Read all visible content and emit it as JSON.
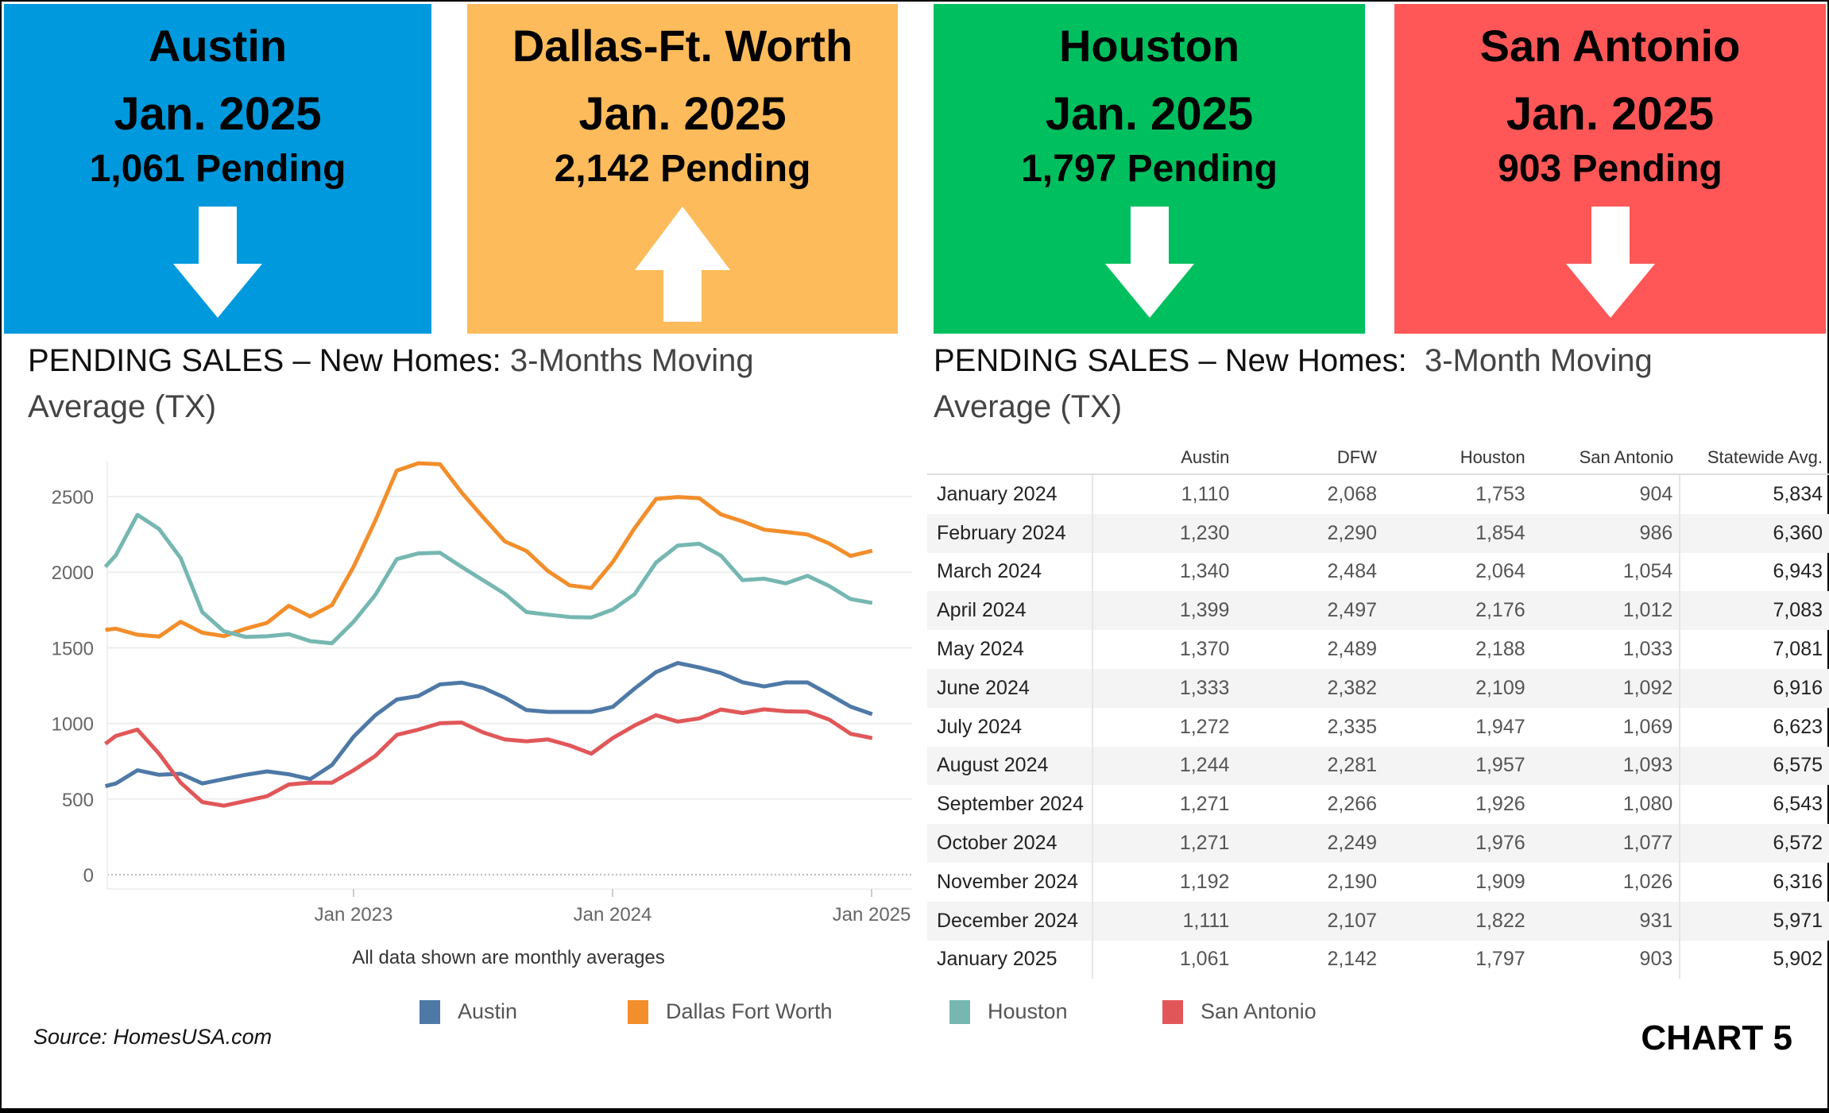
{
  "boxes": [
    {
      "city": "Austin",
      "date": "Jan. 2025",
      "pending": "1,061 Pending",
      "direction": "down",
      "color": "#0099dd"
    },
    {
      "city": "Dallas-Ft. Worth",
      "date": "Jan. 2025",
      "pending": "2,142 Pending",
      "direction": "up",
      "color": "#fdbb5b"
    },
    {
      "city": "Houston",
      "date": "Jan. 2025",
      "pending": "1,797 Pending",
      "direction": "down",
      "color": "#00bf5f"
    },
    {
      "city": "San Antonio",
      "date": "Jan. 2025",
      "pending": "903 Pending",
      "direction": "down",
      "color": "#ff5757"
    }
  ],
  "left_heading": {
    "main": "PENDING SALES – New Homes:",
    "muted": "3-Months  Moving Average (TX)"
  },
  "right_heading": {
    "main": "PENDING SALES – New Homes:",
    "muted": "3-Month Moving Average (TX)"
  },
  "chart_data": {
    "type": "line",
    "title": "",
    "note": "All data shown are monthly averages",
    "x": [
      "2022-01",
      "2022-02",
      "2022-03",
      "2022-04",
      "2022-05",
      "2022-06",
      "2022-07",
      "2022-08",
      "2022-09",
      "2022-10",
      "2022-11",
      "2022-12",
      "2023-01",
      "2023-02",
      "2023-03",
      "2023-04",
      "2023-05",
      "2023-06",
      "2023-07",
      "2023-08",
      "2023-09",
      "2023-10",
      "2023-11",
      "2023-12",
      "2024-01",
      "2024-02",
      "2024-03",
      "2024-04",
      "2024-05",
      "2024-06",
      "2024-07",
      "2024-08",
      "2024-09",
      "2024-10",
      "2024-11",
      "2024-12",
      "2025-01"
    ],
    "x_ticks": [
      "Jan 2023",
      "Jan 2024",
      "Jan 2025"
    ],
    "y_ticks": [
      0,
      500,
      1000,
      1500,
      2000,
      2500
    ],
    "ylim": [
      0,
      2800
    ],
    "grid": true,
    "legend_placement": "bottom",
    "series": [
      {
        "name": "Austin",
        "color": "#4e79a7",
        "values": [
          585,
          603,
          690,
          660,
          667,
          603,
          632,
          660,
          683,
          664,
          632,
          725,
          912,
          1053,
          1158,
          1181,
          1258,
          1270,
          1235,
          1170,
          1088,
          1076,
          1076,
          1076,
          1110,
          1230,
          1340,
          1399,
          1370,
          1333,
          1272,
          1244,
          1271,
          1271,
          1192,
          1111,
          1061
        ]
      },
      {
        "name": "Dallas Fort Worth",
        "color": "#f28e2b",
        "values": [
          1618,
          1626,
          1586,
          1574,
          1672,
          1600,
          1577,
          1626,
          1665,
          1778,
          1707,
          1782,
          2035,
          2339,
          2671,
          2720,
          2713,
          2526,
          2362,
          2203,
          2140,
          2007,
          1913,
          1895,
          2068,
          2290,
          2484,
          2497,
          2489,
          2382,
          2335,
          2281,
          2266,
          2249,
          2190,
          2107,
          2142
        ]
      },
      {
        "name": "Houston",
        "color": "#76b7b2",
        "values": [
          2035,
          2112,
          2379,
          2285,
          2093,
          1736,
          1609,
          1572,
          1576,
          1590,
          1544,
          1530,
          1672,
          1848,
          2086,
          2124,
          2128,
          2035,
          1946,
          1857,
          1736,
          1719,
          1703,
          1700,
          1753,
          1854,
          2064,
          2176,
          2188,
          2109,
          1947,
          1957,
          1926,
          1976,
          1909,
          1822,
          1797
        ]
      },
      {
        "name": "San Antonio",
        "color": "#e15759",
        "values": [
          865,
          917,
          959,
          800,
          608,
          480,
          456,
          487,
          519,
          596,
          608,
          608,
          690,
          784,
          924,
          959,
          1001,
          1006,
          940,
          894,
          882,
          894,
          854,
          800,
          904,
          986,
          1054,
          1012,
          1033,
          1092,
          1069,
          1093,
          1080,
          1077,
          1026,
          931,
          903
        ]
      }
    ]
  },
  "table": {
    "headers": [
      "",
      "Austin",
      "DFW",
      "Houston",
      "San Antonio",
      "Statewide Avg."
    ],
    "rows": [
      [
        "January 2024",
        "1,110",
        "2,068",
        "1,753",
        "904",
        "5,834"
      ],
      [
        "February 2024",
        "1,230",
        "2,290",
        "1,854",
        "986",
        "6,360"
      ],
      [
        "March 2024",
        "1,340",
        "2,484",
        "2,064",
        "1,054",
        "6,943"
      ],
      [
        "April 2024",
        "1,399",
        "2,497",
        "2,176",
        "1,012",
        "7,083"
      ],
      [
        "May 2024",
        "1,370",
        "2,489",
        "2,188",
        "1,033",
        "7,081"
      ],
      [
        "June 2024",
        "1,333",
        "2,382",
        "2,109",
        "1,092",
        "6,916"
      ],
      [
        "July 2024",
        "1,272",
        "2,335",
        "1,947",
        "1,069",
        "6,623"
      ],
      [
        "August 2024",
        "1,244",
        "2,281",
        "1,957",
        "1,093",
        "6,575"
      ],
      [
        "September 2024",
        "1,271",
        "2,266",
        "1,926",
        "1,080",
        "6,543"
      ],
      [
        "October 2024",
        "1,271",
        "2,249",
        "1,976",
        "1,077",
        "6,572"
      ],
      [
        "November 2024",
        "1,192",
        "2,190",
        "1,909",
        "1,026",
        "6,316"
      ],
      [
        "December 2024",
        "1,111",
        "2,107",
        "1,822",
        "931",
        "5,971"
      ],
      [
        "January 2025",
        "1,061",
        "2,142",
        "1,797",
        "903",
        "5,902"
      ]
    ]
  },
  "source": "Source: HomesUSA.com",
  "chart_label": "CHART 5"
}
